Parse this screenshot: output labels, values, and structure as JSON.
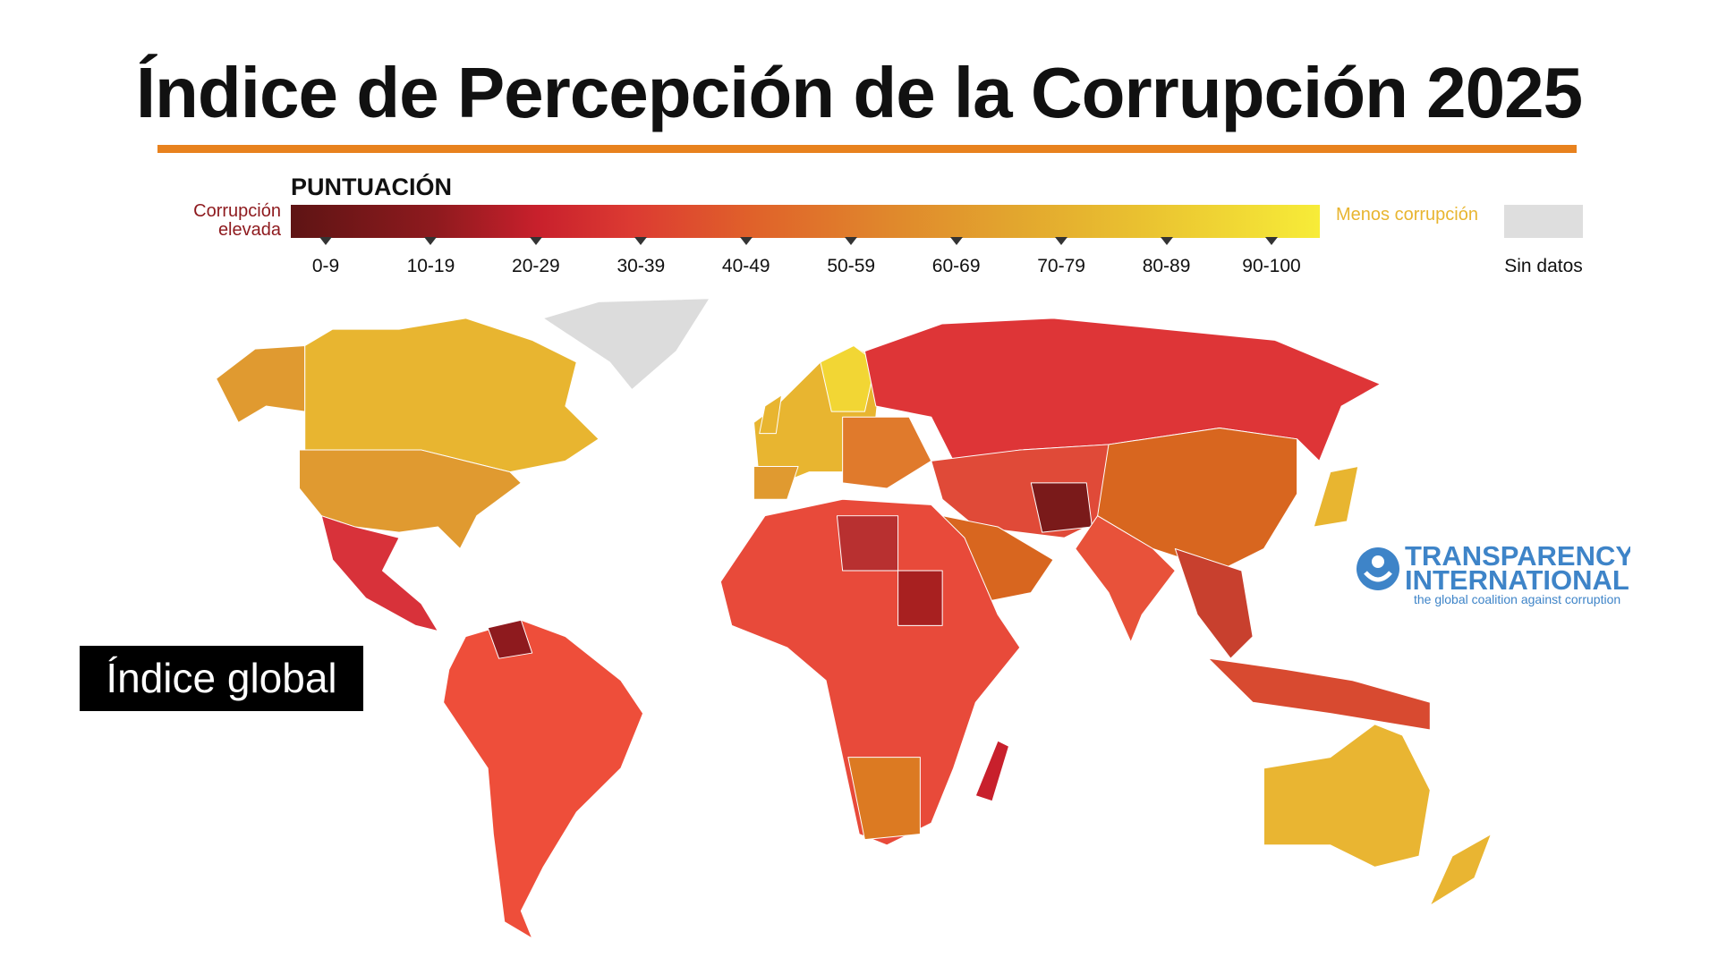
{
  "title": "Índice de Percepción de la Corrupción 2025",
  "legend": {
    "title": "PUNTUACIÓN",
    "low_label": "Corrupción elevada",
    "high_label": "Menos corrupción",
    "ranges": [
      "0-9",
      "10-19",
      "20-29",
      "30-39",
      "40-49",
      "50-59",
      "60-69",
      "70-79",
      "80-89",
      "90-100"
    ],
    "no_data": "Sin datos"
  },
  "badge": "Índice global",
  "logo": {
    "line1": "TRANSPARENCY",
    "line2": "INTERNATIONAL",
    "tagline": "the global coalition against corruption"
  }
}
